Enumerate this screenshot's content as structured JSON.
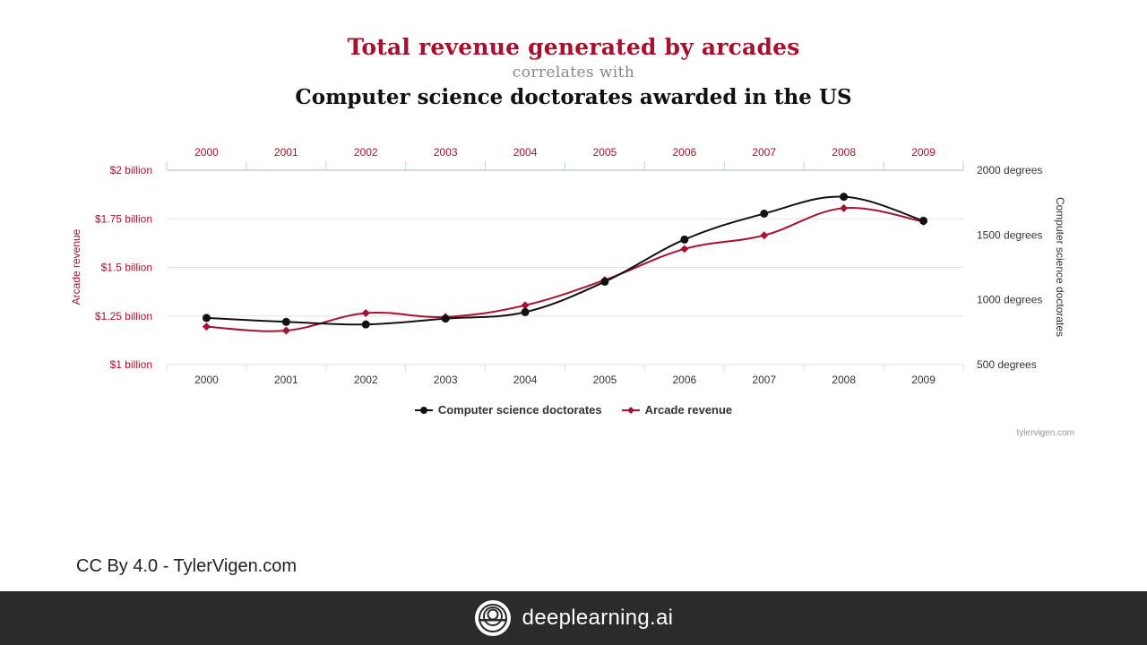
{
  "titles": {
    "main": "Total revenue generated by arcades",
    "connector": "correlates with",
    "sub": "Computer science doctorates awarded in the US"
  },
  "colors": {
    "arcade": "#a8102f",
    "cs": "#111111",
    "grid": "#dde3ea",
    "axis": "#c4cfdc",
    "footer_bg": "#2b2b2b"
  },
  "chart_data": {
    "type": "line",
    "x": [
      "2000",
      "2001",
      "2002",
      "2003",
      "2004",
      "2005",
      "2006",
      "2007",
      "2008",
      "2009"
    ],
    "series": [
      {
        "name": "Computer science doctorates",
        "axis": "right",
        "color": "#111111",
        "marker": "circle",
        "values": [
          860,
          830,
          810,
          855,
          905,
          1140,
          1465,
          1665,
          1795,
          1610
        ]
      },
      {
        "name": "Arcade revenue",
        "axis": "left",
        "color": "#a8102f",
        "marker": "diamond",
        "values": [
          1.195,
          1.175,
          1.265,
          1.245,
          1.305,
          1.435,
          1.595,
          1.665,
          1.805,
          1.735
        ]
      }
    ],
    "left_axis": {
      "label": "Arcade revenue",
      "range": [
        1,
        2
      ],
      "ticks": [
        {
          "value": 2,
          "label": "$2 billion"
        },
        {
          "value": 1.75,
          "label": "$1.75 billion"
        },
        {
          "value": 1.5,
          "label": "$1.5 billion"
        },
        {
          "value": 1.25,
          "label": "$1.25 billion"
        },
        {
          "value": 1,
          "label": "$1 billion"
        }
      ]
    },
    "right_axis": {
      "label": "Computer science doctorates",
      "range": [
        500,
        2000
      ],
      "ticks": [
        {
          "value": 2000,
          "label": "2000 degrees"
        },
        {
          "value": 1500,
          "label": "1500 degrees"
        },
        {
          "value": 1000,
          "label": "1000 degrees"
        },
        {
          "value": 500,
          "label": "500 degrees"
        }
      ]
    },
    "grid": true,
    "legend": "bottom-center"
  },
  "legend": {
    "cs_label": "Computer science doctorates",
    "arcade_label": "Arcade revenue"
  },
  "credit_small": "tylervigen.com",
  "license_text": "CC By 4.0 - TylerVigen.com",
  "footer": {
    "logo_icon": "deeplearning-logo-icon",
    "brand": "deeplearning.ai"
  }
}
